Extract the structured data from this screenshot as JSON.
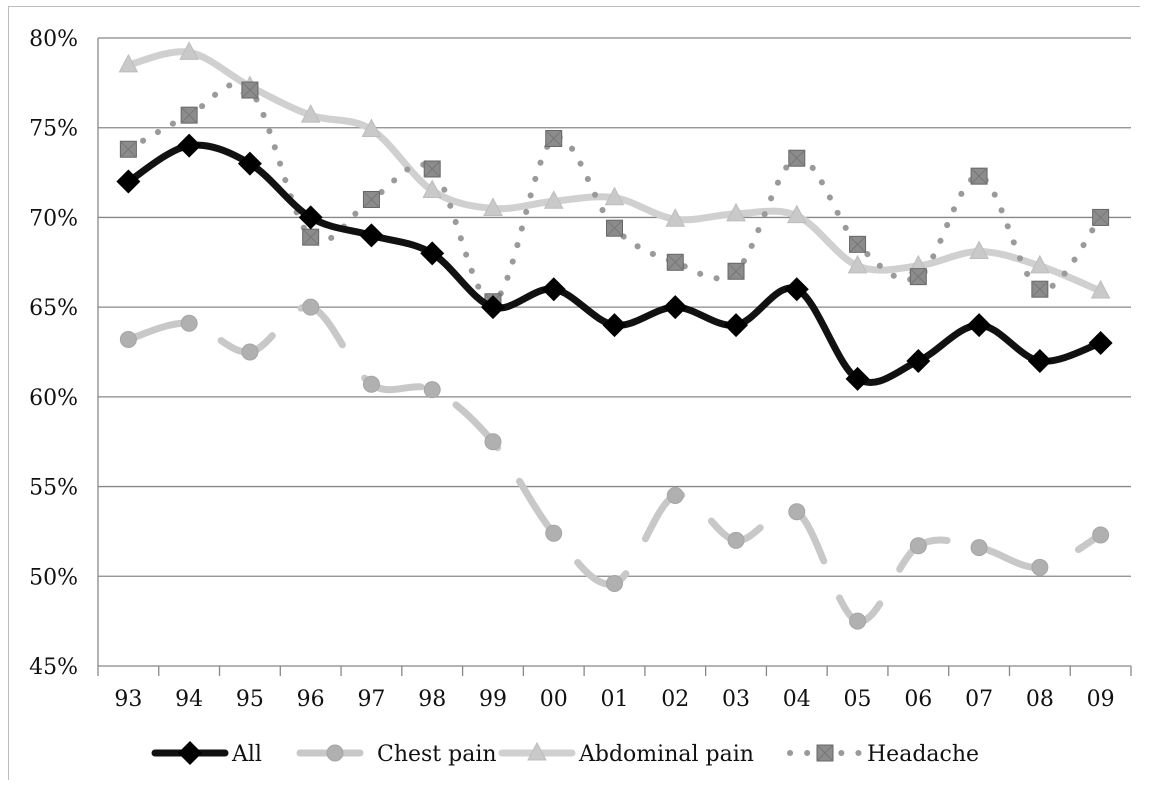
{
  "chart_data": {
    "type": "line",
    "title": "",
    "xlabel": "",
    "ylabel": "",
    "categories": [
      "93",
      "94",
      "95",
      "96",
      "97",
      "98",
      "99",
      "00",
      "01",
      "02",
      "03",
      "04",
      "05",
      "06",
      "07",
      "08",
      "09"
    ],
    "ylim": [
      0.45,
      0.8
    ],
    "yticks": [
      "45%",
      "50%",
      "55%",
      "60%",
      "65%",
      "70%",
      "75%",
      "80%"
    ],
    "ytick_values": [
      0.45,
      0.5,
      0.55,
      0.6,
      0.65,
      0.7,
      0.75,
      0.8
    ],
    "grid": true,
    "legend_position": "bottom",
    "series": [
      {
        "name": "Abdominal pain",
        "marker": "triangle",
        "line": "solid-light",
        "color": "#d0d0d0",
        "marker_color": "#c9c9c9",
        "values": [
          0.785,
          0.792,
          0.773,
          0.757,
          0.749,
          0.715,
          0.705,
          0.709,
          0.711,
          0.699,
          0.702,
          0.701,
          0.673,
          0.673,
          0.681,
          0.673,
          0.659
        ]
      },
      {
        "name": "Headache",
        "marker": "square",
        "line": "dotted",
        "color": "#9a9a9a",
        "marker_color": "#8c8c8c",
        "values": [
          0.738,
          0.757,
          0.771,
          0.689,
          0.71,
          0.727,
          0.653,
          0.744,
          0.694,
          0.675,
          0.67,
          0.733,
          0.685,
          0.667,
          0.723,
          0.66,
          0.7
        ]
      },
      {
        "name": "Chest pain",
        "marker": "circle",
        "line": "dash-light",
        "color": "#c8c8c8",
        "marker_color": "#b0b0b0",
        "values": [
          0.632,
          0.641,
          0.625,
          0.65,
          0.607,
          0.604,
          0.575,
          0.524,
          0.496,
          0.545,
          0.52,
          0.536,
          0.475,
          0.517,
          0.516,
          0.505,
          0.523
        ]
      },
      {
        "name": "All",
        "marker": "diamond",
        "line": "solid-bold",
        "color": "#111111",
        "marker_color": "#000000",
        "values": [
          0.72,
          0.74,
          0.73,
          0.7,
          0.69,
          0.68,
          0.65,
          0.66,
          0.64,
          0.65,
          0.64,
          0.66,
          0.61,
          0.62,
          0.64,
          0.62,
          0.63
        ]
      }
    ],
    "legend_order": [
      "All",
      "Chest pain",
      "Abdominal pain",
      "Headache"
    ]
  }
}
